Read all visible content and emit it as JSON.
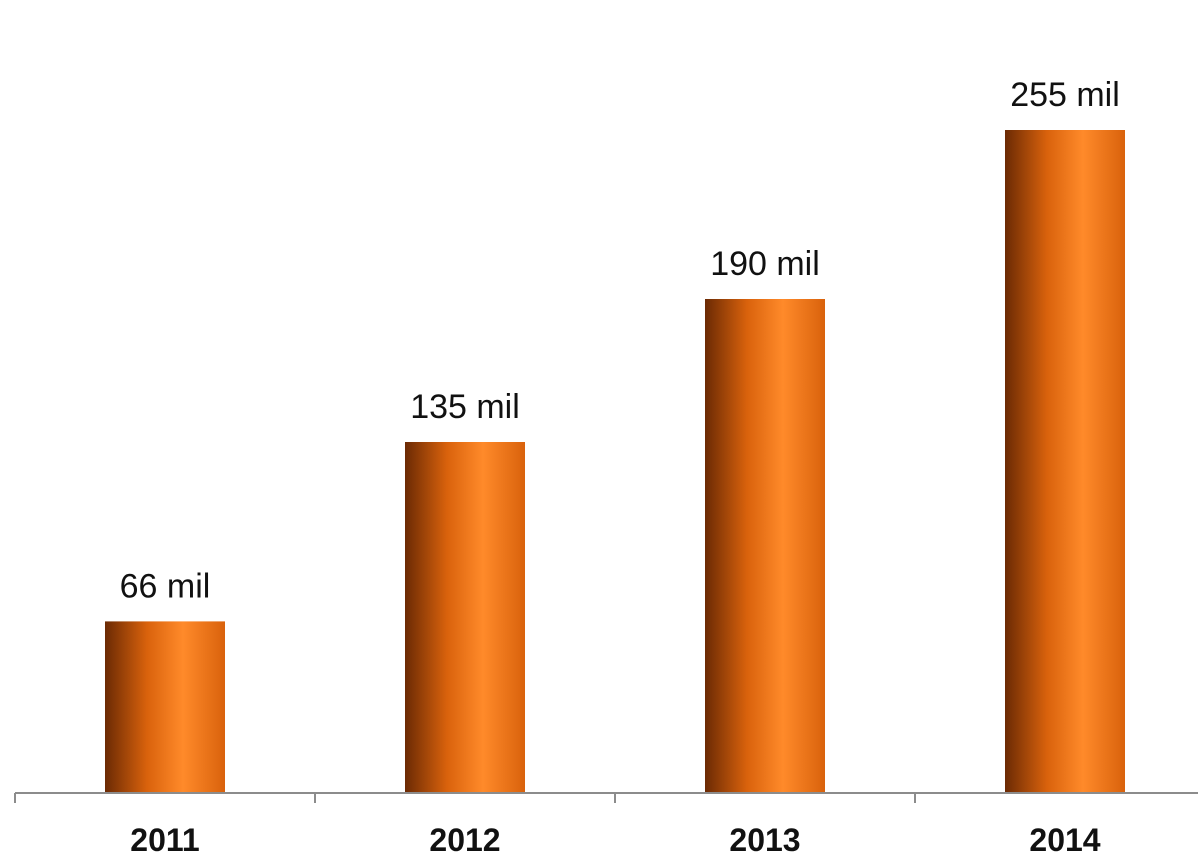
{
  "chart_data": {
    "type": "bar",
    "categories": [
      "2011",
      "2012",
      "2013",
      "2014"
    ],
    "values": [
      66,
      135,
      190,
      255
    ],
    "data_labels": [
      "66 mil",
      "135 mil",
      "190 mil",
      "255 mil"
    ],
    "ylim": [
      0,
      280
    ],
    "grid": false,
    "legend": "none",
    "colors": {
      "bar_dark": "#6b2a04",
      "bar_mid": "#d9620c",
      "bar_light": "#ff8a2a",
      "axis": "#8c8c8c",
      "text": "#111111"
    }
  }
}
